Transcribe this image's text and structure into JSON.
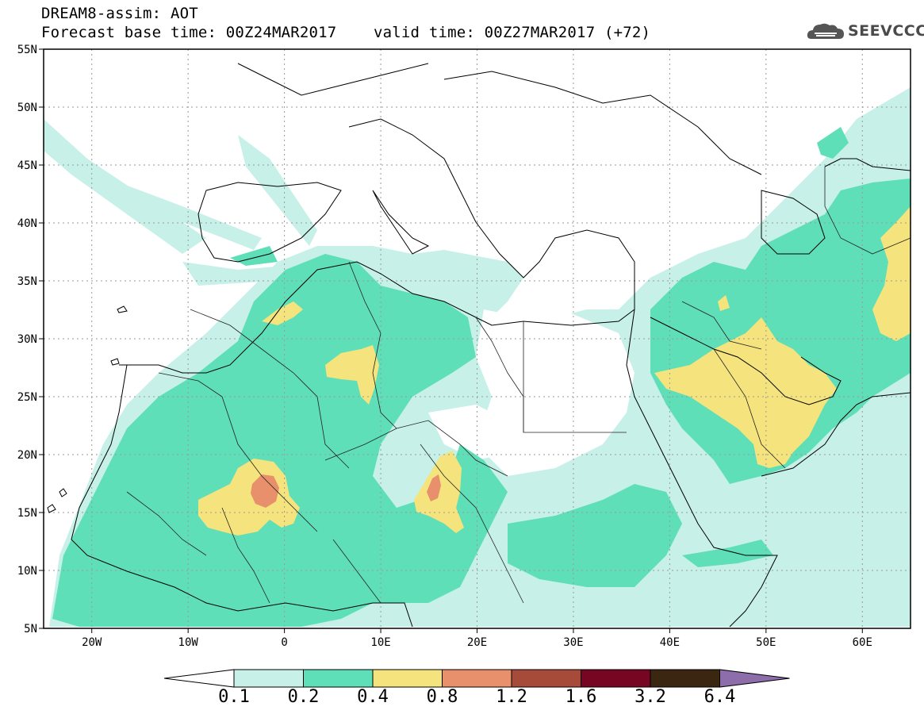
{
  "header": {
    "title_line1": "DREAM8-assim: AOT",
    "title_line2": "Forecast base time: 00Z24MAR2017    valid time: 00Z27MAR2017 (+72)"
  },
  "logo": {
    "text": "SEEVCCC",
    "icon": "cloud-logo-icon"
  },
  "map": {
    "lon_range": [
      -25,
      65
    ],
    "lat_range": [
      5,
      55
    ],
    "lat_ticks": [
      {
        "value": 55,
        "label": "55N"
      },
      {
        "value": 50,
        "label": "50N"
      },
      {
        "value": 45,
        "label": "45N"
      },
      {
        "value": 40,
        "label": "40N"
      },
      {
        "value": 35,
        "label": "35N"
      },
      {
        "value": 30,
        "label": "30N"
      },
      {
        "value": 25,
        "label": "25N"
      },
      {
        "value": 20,
        "label": "20N"
      },
      {
        "value": 15,
        "label": "15N"
      },
      {
        "value": 10,
        "label": "10N"
      },
      {
        "value": 5,
        "label": "5N"
      }
    ],
    "lon_ticks": [
      {
        "value": -20,
        "label": "20W"
      },
      {
        "value": -10,
        "label": "10W"
      },
      {
        "value": 0,
        "label": "0"
      },
      {
        "value": 10,
        "label": "10E"
      },
      {
        "value": 20,
        "label": "20E"
      },
      {
        "value": 30,
        "label": "30E"
      },
      {
        "value": 40,
        "label": "40E"
      },
      {
        "value": 50,
        "label": "50E"
      },
      {
        "value": 60,
        "label": "60E"
      }
    ],
    "grid": true
  },
  "colorbar": {
    "labels": [
      "0.1",
      "0.2",
      "0.4",
      "0.8",
      "1.2",
      "1.6",
      "3.2",
      "6.4"
    ],
    "colors": [
      "#ffffff",
      "#c7f0e9",
      "#5fdfb7",
      "#f5e47d",
      "#e8906b",
      "#a64a3a",
      "#760622",
      "#3a2611",
      "#8e6dab"
    ]
  }
}
